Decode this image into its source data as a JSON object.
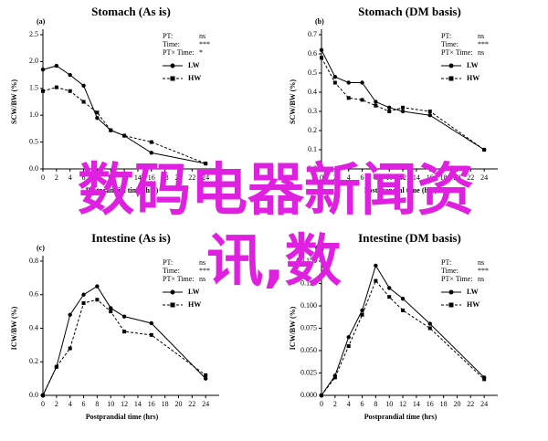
{
  "chart_data": [
    {
      "type": "line",
      "panel_label": "(a)",
      "title": "Stomach (As is)",
      "y_label": "SCW/BW (%)",
      "x_label": "Postprandial time (hrs)",
      "x": [
        0,
        2,
        4,
        6,
        8,
        10,
        12,
        16,
        24
      ],
      "xlim": [
        0,
        26
      ],
      "xticks": [
        0,
        2,
        4,
        6,
        8,
        10,
        12,
        14,
        16,
        18,
        20,
        22,
        24
      ],
      "ylim": [
        0,
        2.5
      ],
      "yticks": [
        {
          "value": 0,
          "label": "0.0"
        },
        0.5,
        {
          "value": 1,
          "label": "1.0"
        },
        1.5,
        {
          "value": 2,
          "label": "2.0"
        },
        2.5
      ],
      "stats": [
        {
          "label": "PT:",
          "value": "ns"
        },
        {
          "label": "Time:",
          "value": "***"
        },
        {
          "label": "PT× Time:",
          "value": "*"
        }
      ],
      "series": [
        {
          "name": "LW",
          "color": "#000000",
          "values": [
            1.85,
            1.92,
            1.75,
            1.55,
            0.95,
            0.72,
            0.62,
            0.3,
            0.1
          ]
        },
        {
          "name": "HW",
          "color": "#000000",
          "values": [
            1.45,
            1.52,
            1.45,
            1.25,
            1.05,
            0.72,
            0.62,
            0.5,
            0.1
          ]
        }
      ]
    },
    {
      "type": "line",
      "panel_label": "(b)",
      "title": "Stomach (DM basis)",
      "y_label": "SCW/BW (%)",
      "x_label": "Postprandial time (hrs)",
      "x": [
        0,
        2,
        4,
        6,
        8,
        10,
        12,
        16,
        24
      ],
      "xlim": [
        0,
        26
      ],
      "xticks": [
        0,
        2,
        4,
        6,
        8,
        10,
        12,
        14,
        16,
        18,
        20,
        22,
        24
      ],
      "ylim": [
        0,
        0.7
      ],
      "yticks": [
        {
          "value": 0,
          "label": "0.0"
        },
        0.1,
        0.2,
        0.3,
        0.4,
        0.5,
        0.6,
        0.7
      ],
      "stats": [
        {
          "label": "PT:",
          "value": "ns"
        },
        {
          "label": "Time:",
          "value": "***"
        },
        {
          "label": "PT× Time:",
          "value": "ns"
        }
      ],
      "series": [
        {
          "name": "LW",
          "color": "#000000",
          "values": [
            0.62,
            0.48,
            0.45,
            0.45,
            0.35,
            0.32,
            0.3,
            0.28,
            0.1
          ]
        },
        {
          "name": "HW",
          "color": "#000000",
          "values": [
            0.58,
            0.45,
            0.37,
            0.36,
            0.33,
            0.3,
            0.32,
            0.3,
            0.1
          ]
        }
      ]
    },
    {
      "type": "line",
      "panel_label": "(c)",
      "title": "Intestine (As is)",
      "y_label": "ICW/BW (%)",
      "x_label": "Postprandial time (hrs)",
      "x": [
        0,
        2,
        4,
        6,
        8,
        10,
        12,
        16,
        24
      ],
      "xlim": [
        0,
        26
      ],
      "xticks": [
        0,
        2,
        4,
        6,
        8,
        10,
        12,
        14,
        16,
        18,
        20,
        22,
        24
      ],
      "ylim": [
        0,
        0.8
      ],
      "yticks": [
        {
          "value": 0,
          "label": "0.0"
        },
        0.2,
        0.4,
        0.6,
        0.8
      ],
      "stats": [
        {
          "label": "PT:",
          "value": "ns"
        },
        {
          "label": "Time:",
          "value": "***"
        },
        {
          "label": "PT× Time:",
          "value": "ns"
        }
      ],
      "series": [
        {
          "name": "LW",
          "color": "#000000",
          "values": [
            0,
            0.17,
            0.48,
            0.6,
            0.65,
            0.52,
            0.47,
            0.43,
            0.1
          ]
        },
        {
          "name": "HW",
          "color": "#000000",
          "values": [
            0,
            0.17,
            0.28,
            0.55,
            0.57,
            0.5,
            0.38,
            0.36,
            0.12
          ]
        }
      ]
    },
    {
      "type": "line",
      "panel_label": "(d)",
      "title": "Intestine (DM basis)",
      "y_label": "ICW/BW (%)",
      "x_label": "Postprandial time (hrs)",
      "x": [
        0,
        2,
        4,
        6,
        8,
        10,
        12,
        16,
        24
      ],
      "xlim": [
        0,
        26
      ],
      "xticks": [
        0,
        2,
        4,
        6,
        8,
        10,
        12,
        14,
        16,
        18,
        20,
        22,
        24
      ],
      "ylim": [
        0,
        0.15
      ],
      "yticks": [
        {
          "value": 0,
          "label": "0.000"
        },
        {
          "value": 0.025,
          "label": "0.025"
        },
        {
          "value": 0.05,
          "label": "0.050"
        },
        {
          "value": 0.075,
          "label": "0.075"
        },
        {
          "value": 0.1,
          "label": "0.100"
        },
        {
          "value": 0.125,
          "label": "0.125"
        },
        {
          "value": 0.15,
          "label": "0.150"
        }
      ],
      "stats": [
        {
          "label": "PT:",
          "value": "ns"
        },
        {
          "label": "Time:",
          "value": "***"
        },
        {
          "label": "PT× Time:",
          "value": "ns"
        }
      ],
      "series": [
        {
          "name": "LW",
          "color": "#000000",
          "values": [
            0,
            0.022,
            0.065,
            0.095,
            0.145,
            0.12,
            0.108,
            0.08,
            0.02
          ]
        },
        {
          "name": "HW",
          "color": "#000000",
          "values": [
            0,
            0.02,
            0.055,
            0.09,
            0.128,
            0.11,
            0.095,
            0.075,
            0.018
          ]
        }
      ]
    }
  ],
  "overlay": {
    "lines": [
      "数码电器新闻资",
      "讯,数"
    ],
    "color": "#e020e0"
  }
}
